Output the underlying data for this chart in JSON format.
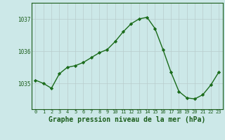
{
  "x": [
    0,
    1,
    2,
    3,
    4,
    5,
    6,
    7,
    8,
    9,
    10,
    11,
    12,
    13,
    14,
    15,
    16,
    17,
    18,
    19,
    20,
    21,
    22,
    23
  ],
  "y": [
    1035.1,
    1035.0,
    1034.85,
    1035.3,
    1035.5,
    1035.55,
    1035.65,
    1035.8,
    1035.95,
    1036.05,
    1036.3,
    1036.6,
    1036.85,
    1037.0,
    1037.05,
    1036.7,
    1036.05,
    1035.35,
    1034.75,
    1034.55,
    1034.52,
    1034.65,
    1034.95,
    1035.35
  ],
  "title": "Graphe pression niveau de la mer (hPa)",
  "line_color": "#1a6b1a",
  "marker": "D",
  "marker_size": 2.2,
  "bg_color": "#cce8e8",
  "grid_color": "#b8cccc",
  "tick_label_color": "#1a5c1a",
  "title_color": "#1a5c1a",
  "ylim_min": 1034.2,
  "ylim_max": 1037.5,
  "yticks": [
    1035,
    1036,
    1037
  ],
  "xticks": [
    0,
    1,
    2,
    3,
    4,
    5,
    6,
    7,
    8,
    9,
    10,
    11,
    12,
    13,
    14,
    15,
    16,
    17,
    18,
    19,
    20,
    21,
    22,
    23
  ],
  "xtick_fontsize": 5.0,
  "ytick_fontsize": 5.5,
  "title_fontsize": 7.0,
  "linewidth": 1.0
}
